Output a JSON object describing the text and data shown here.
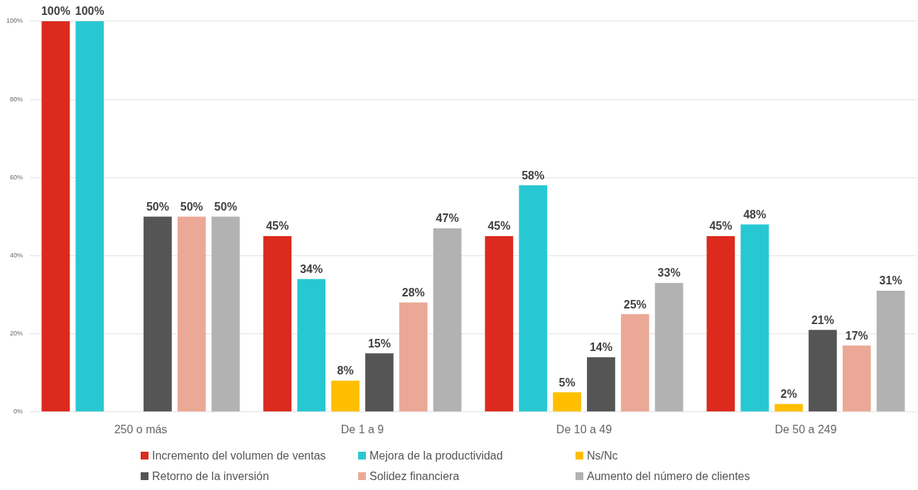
{
  "chart_data": {
    "type": "bar",
    "categories": [
      "250 o más",
      "De 1 a 9",
      "De 10 a 49",
      "De 50 a 249"
    ],
    "series": [
      {
        "name": "Incremento del volumen de ventas",
        "color": "#dc2a1e",
        "values": [
          100,
          45,
          45,
          45
        ],
        "value_labels": [
          "100%",
          "45%",
          "45%",
          "45%"
        ]
      },
      {
        "name": "Mejora de la productividad",
        "color": "#28c8d2",
        "values": [
          100,
          34,
          58,
          48
        ],
        "value_labels": [
          "100%",
          "34%",
          "58%",
          "48%"
        ]
      },
      {
        "name": "Ns/Nc",
        "color": "#ffbf00",
        "values": [
          null,
          8,
          5,
          2
        ],
        "value_labels": [
          null,
          "8%",
          "5%",
          "2%"
        ]
      },
      {
        "name": "Retorno de la inversión",
        "color": "#555555",
        "values": [
          50,
          15,
          14,
          21
        ],
        "value_labels": [
          "50%",
          "15%",
          "14%",
          "21%"
        ]
      },
      {
        "name": "Solidez financiera",
        "color": "#eca896",
        "values": [
          50,
          28,
          25,
          17
        ],
        "value_labels": [
          "50%",
          "28%",
          "25%",
          "17%"
        ]
      },
      {
        "name": "Aumento del número de clientes",
        "color": "#b2b2b2",
        "values": [
          50,
          47,
          33,
          31
        ],
        "value_labels": [
          "50%",
          "47%",
          "33%",
          "31%"
        ]
      }
    ],
    "ylim": [
      0,
      100
    ],
    "yticks": [
      {
        "value": 0,
        "label": "0%"
      },
      {
        "value": 20,
        "label": "20%"
      },
      {
        "value": 40,
        "label": "40%"
      },
      {
        "value": 60,
        "label": "60%"
      },
      {
        "value": 80,
        "label": "80%"
      },
      {
        "value": 100,
        "label": "100%"
      }
    ],
    "grid": "y",
    "legend": "bottom"
  }
}
